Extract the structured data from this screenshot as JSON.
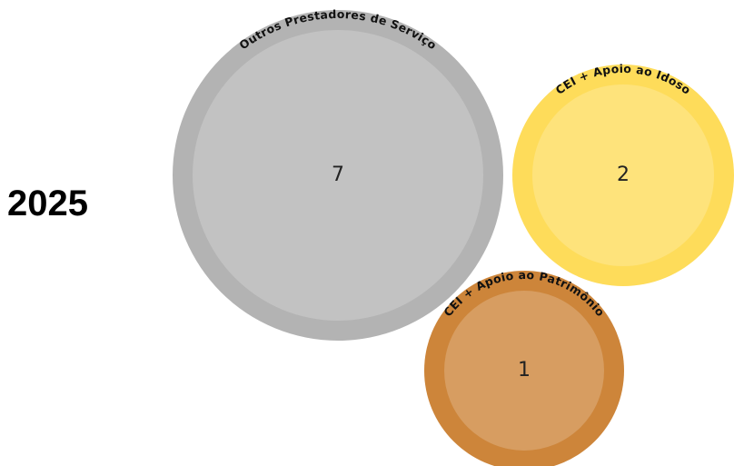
{
  "chart_data": {
    "type": "bubble",
    "title": "2025",
    "categories": [
      "Outros Prestadores de Serviço",
      "CEI + Apoio ao Idoso",
      "CEI + Apoio ao Patrimônio"
    ],
    "values": [
      7,
      2,
      1
    ],
    "colors": [
      "#b3b3b3",
      "#fedc5a",
      "#cd853a"
    ]
  }
}
